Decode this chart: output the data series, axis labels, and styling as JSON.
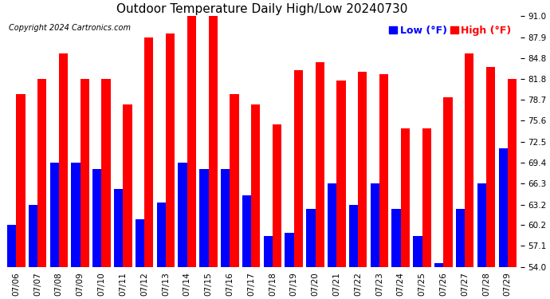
{
  "title": "Outdoor Temperature Daily High/Low 20240730",
  "copyright": "Copyright 2024 Cartronics.com",
  "legend_low_label": "Low",
  "legend_high_label": "High",
  "legend_unit": "(°F)",
  "dates": [
    "07/06",
    "07/07",
    "07/08",
    "07/09",
    "07/10",
    "07/11",
    "07/12",
    "07/13",
    "07/14",
    "07/15",
    "07/16",
    "07/17",
    "07/18",
    "07/19",
    "07/20",
    "07/21",
    "07/22",
    "07/23",
    "07/24",
    "07/25",
    "07/26",
    "07/27",
    "07/28",
    "07/29"
  ],
  "highs": [
    79.5,
    81.8,
    85.5,
    81.8,
    81.8,
    78.0,
    87.9,
    88.5,
    91.0,
    91.0,
    79.5,
    78.0,
    75.0,
    83.0,
    84.2,
    81.5,
    82.8,
    82.5,
    74.5,
    74.5,
    79.0,
    85.5,
    83.5,
    81.8
  ],
  "lows": [
    60.2,
    63.2,
    69.4,
    69.4,
    68.5,
    65.5,
    61.0,
    63.5,
    69.4,
    68.5,
    68.5,
    64.5,
    58.5,
    59.0,
    62.5,
    66.3,
    63.2,
    66.3,
    62.5,
    58.5,
    54.5,
    62.5,
    66.3,
    71.5
  ],
  "ymin": 54.0,
  "ymax": 91.0,
  "yticks": [
    54.0,
    57.1,
    60.2,
    63.2,
    66.3,
    69.4,
    72.5,
    75.6,
    78.7,
    81.8,
    84.8,
    87.9,
    91.0
  ],
  "bar_width": 0.42,
  "high_color": "#ff0000",
  "low_color": "#0000ff",
  "grid_color": "#ffffff",
  "bg_color": "#ffffff",
  "plot_bg_color": "#ffffff",
  "title_fontsize": 11,
  "tick_fontsize": 7.5,
  "legend_fontsize": 9,
  "copyright_fontsize": 7
}
